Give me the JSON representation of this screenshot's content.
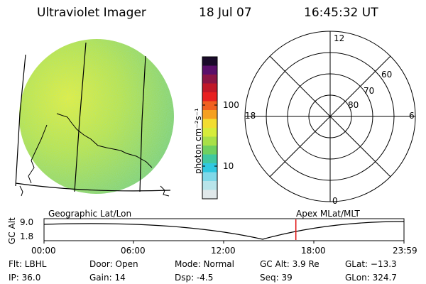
{
  "header": {
    "title": "Ultraviolet Imager",
    "date": "18 Jul 07",
    "time": "16:45:32 UT"
  },
  "colorbar": {
    "unit_label": "photon cm⁻²s⁻¹",
    "ticks": [
      "100",
      "10"
    ],
    "colors": [
      "#1a0a2a",
      "#5a0f6a",
      "#8a1545",
      "#c01828",
      "#e82020",
      "#f06020",
      "#f5a020",
      "#f2dd30",
      "#d6ec3a",
      "#a8e048",
      "#6fd060",
      "#40c8a0",
      "#30c8e0",
      "#80d8e8",
      "#b8e4ea",
      "#e0e8ea"
    ]
  },
  "polar": {
    "top": "12",
    "left": "18",
    "right": "6",
    "bottom": "0",
    "rings": [
      "60",
      "70",
      "80"
    ]
  },
  "timeline": {
    "left_label": "Geographic Lat/Lon",
    "right_label": "Apex  MLat/MLT",
    "axis_label": "GC Alt",
    "ymax": "9.0",
    "ymin": "1.8",
    "xticks": [
      "00:00",
      "06:00",
      "12:00",
      "18:00",
      "23:59"
    ],
    "current_time_fraction": 0.6996,
    "marker_color": "#e01010"
  },
  "info": {
    "flt": "Flt: LBHL",
    "ip": "IP: 36.0",
    "door": "Door: Open",
    "gain": "Gain: 14",
    "mode": "Mode: Normal",
    "dsp": "Dsp:    -4.5",
    "gcalt": "GC Alt: 3.9 Re",
    "seq": "Seq: 39",
    "glat": "GLat: −13.3",
    "glon": "GLon: 324.7"
  }
}
